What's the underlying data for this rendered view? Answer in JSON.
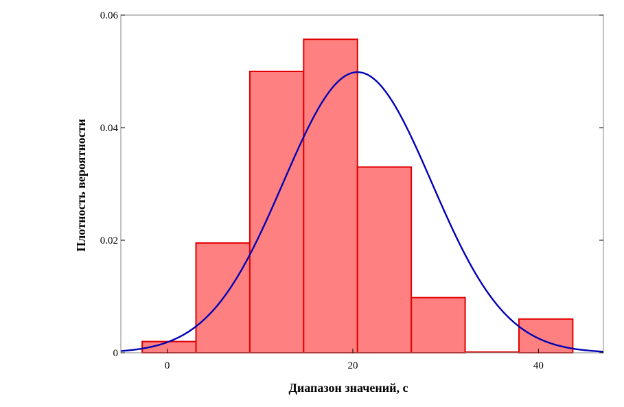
{
  "chart_data": {
    "type": "bar",
    "title": "",
    "xlabel": "Диапазон значений, с",
    "ylabel": "Плотность вероятности",
    "xlim": [
      -5,
      47
    ],
    "ylim": [
      0,
      0.06
    ],
    "grid": false,
    "x_ticks": [
      {
        "value": 0,
        "label": "0"
      },
      {
        "value": 20,
        "label": "20"
      },
      {
        "value": 40,
        "label": "40"
      }
    ],
    "y_ticks": [
      {
        "value": 0,
        "label": "0"
      },
      {
        "value": 0.02,
        "label": "0.02"
      },
      {
        "value": 0.04,
        "label": "0.04"
      },
      {
        "value": 0.06,
        "label": "0.06"
      }
    ],
    "histogram": {
      "bin_edges": [
        -2.7,
        3.1,
        8.9,
        14.7,
        20.5,
        26.3,
        32.1,
        37.9,
        43.7
      ],
      "values": [
        0.002,
        0.0195,
        0.05,
        0.0557,
        0.033,
        0.0098,
        0.0,
        0.006
      ],
      "fill_color": "#ff8080",
      "edge_color": "#e00000"
    },
    "curve": {
      "type": "normal_density",
      "mean": 20.5,
      "std": 8.0,
      "color": "#0000b4"
    }
  }
}
